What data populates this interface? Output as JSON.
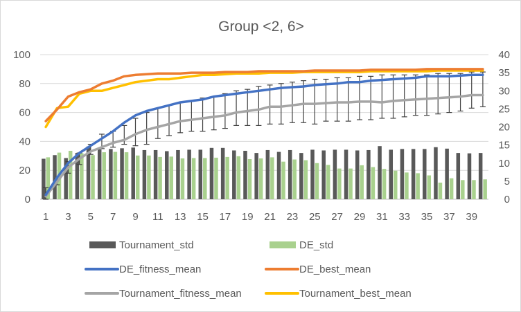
{
  "chart_data": {
    "type": "bar",
    "title": "Group <2, 6>",
    "x": [
      1,
      2,
      3,
      4,
      5,
      6,
      7,
      8,
      9,
      10,
      11,
      12,
      13,
      14,
      15,
      16,
      17,
      18,
      19,
      20,
      21,
      22,
      23,
      24,
      25,
      26,
      27,
      28,
      29,
      30,
      31,
      32,
      33,
      34,
      35,
      36,
      37,
      38,
      39,
      40
    ],
    "x_tick_labels": [
      "1",
      "3",
      "5",
      "7",
      "9",
      "11",
      "13",
      "15",
      "17",
      "19",
      "21",
      "23",
      "25",
      "27",
      "29",
      "31",
      "33",
      "35",
      "37",
      "39"
    ],
    "y_left": {
      "range": [
        0,
        100
      ],
      "ticks": [
        "0",
        "20",
        "40",
        "60",
        "80",
        "100"
      ]
    },
    "y_right": {
      "range": [
        0,
        40
      ],
      "ticks": [
        "0",
        "5",
        "10",
        "15",
        "20",
        "25",
        "30",
        "35",
        "40"
      ]
    },
    "grid": "horizontal",
    "legend_position": "bottom",
    "bar_series": [
      {
        "name": "Tournament_std",
        "axis": "right",
        "color": "#595959",
        "values": [
          11.2,
          12.2,
          11.4,
          12.8,
          14.6,
          13.8,
          13.9,
          14.1,
          14.3,
          13.6,
          13.6,
          13.3,
          13.6,
          13.7,
          13.7,
          14.2,
          14.2,
          13.5,
          13.4,
          12.8,
          13.6,
          13.1,
          13.6,
          12.8,
          13.7,
          13.5,
          13.7,
          13.7,
          13.5,
          13.6,
          14.7,
          13.7,
          13.9,
          13.9,
          13.9,
          14.4,
          14.0,
          12.8,
          12.7,
          12.8
        ]
      },
      {
        "name": "DE_std",
        "axis": "right",
        "color": "#a9d18e",
        "values": [
          11.6,
          12.9,
          13.4,
          12.7,
          12.2,
          13.0,
          13.1,
          13.0,
          12.1,
          12.1,
          11.7,
          11.8,
          11.3,
          11.4,
          11.4,
          11.5,
          11.7,
          11.9,
          11.1,
          11.3,
          11.6,
          10.4,
          11.0,
          10.8,
          10.0,
          9.5,
          8.5,
          8.5,
          9.4,
          8.9,
          8.4,
          7.9,
          7.4,
          7.2,
          6.6,
          4.6,
          5.8,
          5.3,
          5.3,
          5.5
        ]
      }
    ],
    "line_series": [
      {
        "name": "DE_fitness_mean",
        "axis": "left",
        "color": "#4472c4",
        "values": [
          3,
          15,
          25,
          32,
          37,
          42,
          47,
          53,
          58,
          61,
          63,
          65,
          67,
          68,
          69,
          71,
          72,
          73,
          74,
          75,
          76,
          77,
          77.5,
          78,
          79,
          79.5,
          80,
          81,
          81,
          82,
          82.5,
          83,
          83.5,
          84,
          85,
          85,
          85,
          85.5,
          86,
          86
        ]
      },
      {
        "name": "DE_best_mean",
        "axis": "left",
        "color": "#ed7d31",
        "values": [
          54,
          62,
          71,
          74,
          76,
          80,
          82,
          85,
          86,
          86.5,
          87,
          87,
          87,
          87.5,
          87.5,
          87.5,
          88,
          88,
          88,
          88.5,
          88.5,
          88.5,
          88.5,
          88.5,
          89,
          89,
          89,
          89,
          89,
          89.5,
          89.5,
          89.5,
          89.5,
          89.5,
          90,
          90,
          90,
          90,
          90,
          90
        ]
      },
      {
        "name": "Tournament_fitness_mean",
        "axis": "left",
        "color": "#a5a5a5",
        "values": [
          2,
          12,
          22,
          28,
          33,
          36,
          39,
          41,
          45,
          48,
          50,
          52,
          54,
          55,
          56,
          57,
          58,
          60,
          61,
          62,
          64,
          64,
          65,
          66,
          66,
          66.5,
          67,
          67,
          67.5,
          67.5,
          67,
          68,
          68.5,
          69,
          69.5,
          70,
          70.5,
          71,
          72,
          72
        ]
      },
      {
        "name": "Tournament_best_mean",
        "axis": "left",
        "color": "#ffc000",
        "values": [
          50,
          63,
          64,
          73,
          75,
          75,
          77,
          79,
          81,
          82,
          83,
          83,
          84,
          85,
          86,
          86,
          86.5,
          87,
          87,
          87,
          87.5,
          87.5,
          87.5,
          88,
          88,
          88,
          88,
          88,
          88,
          88.5,
          88.5,
          88.5,
          88.5,
          88.5,
          88.5,
          89,
          89,
          89,
          89,
          89
        ]
      }
    ],
    "error_bars": {
      "series": "Tournament_fitness_mean",
      "every": 1,
      "range_left": [
        [
          0,
          8
        ],
        [
          10,
          14
        ],
        [
          18,
          26
        ],
        [
          24,
          32
        ],
        [
          31,
          38
        ],
        [
          35,
          45
        ],
        [
          36,
          47
        ],
        [
          38,
          51
        ],
        [
          37,
          56
        ],
        [
          38,
          60
        ],
        [
          42,
          63
        ],
        [
          44,
          65
        ],
        [
          46,
          67
        ],
        [
          47,
          68
        ],
        [
          47,
          70
        ],
        [
          48,
          71
        ],
        [
          49,
          73
        ],
        [
          51,
          75
        ],
        [
          51,
          76
        ],
        [
          51,
          78
        ],
        [
          52,
          79
        ],
        [
          52,
          80
        ],
        [
          53,
          81
        ],
        [
          53,
          82
        ],
        [
          52,
          83
        ],
        [
          54,
          83
        ],
        [
          54,
          84
        ],
        [
          54,
          84
        ],
        [
          55,
          85
        ],
        [
          55,
          85
        ],
        [
          56,
          86
        ],
        [
          56,
          86
        ],
        [
          57,
          86
        ],
        [
          58,
          86
        ],
        [
          58,
          86
        ],
        [
          59,
          87
        ],
        [
          60,
          87
        ],
        [
          61,
          87
        ],
        [
          63,
          88
        ],
        [
          64,
          88
        ]
      ]
    }
  }
}
